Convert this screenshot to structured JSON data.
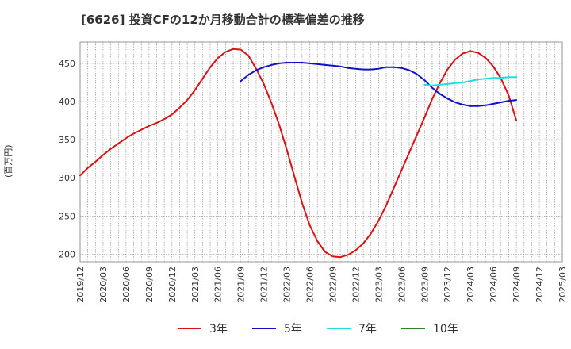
{
  "chart_data": {
    "type": "line",
    "title": "[6626]  投資CFの12か月移動合計の標準偏差の推移",
    "ylabel": "(百万円)",
    "xlabel": "",
    "ylim": [
      190,
      478
    ],
    "xlim": [
      "2019-12",
      "2025-03"
    ],
    "yticks": [
      200,
      250,
      300,
      350,
      400,
      450
    ],
    "xticks": [
      "2019/12",
      "2020/03",
      "2020/06",
      "2020/09",
      "2020/12",
      "2021/03",
      "2021/06",
      "2021/09",
      "2021/12",
      "2022/03",
      "2022/06",
      "2022/09",
      "2022/12",
      "2023/03",
      "2023/06",
      "2023/09",
      "2023/12",
      "2024/03",
      "2024/06",
      "2024/09",
      "2024/12",
      "2025/03"
    ],
    "grid": true,
    "legend_position": "bottom",
    "series": [
      {
        "name": "3年",
        "color": "#dd1111",
        "points": [
          [
            "2019-12",
            303
          ],
          [
            "2020-01",
            313
          ],
          [
            "2020-02",
            321
          ],
          [
            "2020-03",
            330
          ],
          [
            "2020-04",
            338
          ],
          [
            "2020-05",
            345
          ],
          [
            "2020-06",
            352
          ],
          [
            "2020-07",
            358
          ],
          [
            "2020-08",
            363
          ],
          [
            "2020-09",
            368
          ],
          [
            "2020-10",
            372
          ],
          [
            "2020-11",
            377
          ],
          [
            "2020-12",
            383
          ],
          [
            "2021-01",
            392
          ],
          [
            "2021-02",
            402
          ],
          [
            "2021-03",
            415
          ],
          [
            "2021-04",
            430
          ],
          [
            "2021-05",
            445
          ],
          [
            "2021-06",
            457
          ],
          [
            "2021-07",
            465
          ],
          [
            "2021-08",
            469
          ],
          [
            "2021-09",
            468
          ],
          [
            "2021-10",
            460
          ],
          [
            "2021-11",
            443
          ],
          [
            "2021-12",
            423
          ],
          [
            "2022-01",
            398
          ],
          [
            "2022-02",
            370
          ],
          [
            "2022-03",
            337
          ],
          [
            "2022-04",
            302
          ],
          [
            "2022-05",
            267
          ],
          [
            "2022-06",
            238
          ],
          [
            "2022-07",
            217
          ],
          [
            "2022-08",
            203
          ],
          [
            "2022-09",
            197
          ],
          [
            "2022-10",
            196
          ],
          [
            "2022-11",
            199
          ],
          [
            "2022-12",
            205
          ],
          [
            "2023-01",
            214
          ],
          [
            "2023-02",
            227
          ],
          [
            "2023-03",
            244
          ],
          [
            "2023-04",
            264
          ],
          [
            "2023-05",
            287
          ],
          [
            "2023-06",
            310
          ],
          [
            "2023-07",
            333
          ],
          [
            "2023-08",
            356
          ],
          [
            "2023-09",
            379
          ],
          [
            "2023-10",
            403
          ],
          [
            "2023-11",
            424
          ],
          [
            "2023-12",
            442
          ],
          [
            "2024-01",
            455
          ],
          [
            "2024-02",
            463
          ],
          [
            "2024-03",
            466
          ],
          [
            "2024-04",
            464
          ],
          [
            "2024-05",
            457
          ],
          [
            "2024-06",
            446
          ],
          [
            "2024-07",
            430
          ],
          [
            "2024-08",
            408
          ],
          [
            "2024-09",
            375
          ]
        ]
      },
      {
        "name": "5年",
        "color": "#1111cc",
        "points": [
          [
            "2021-09",
            427
          ],
          [
            "2021-10",
            435
          ],
          [
            "2021-11",
            441
          ],
          [
            "2021-12",
            445
          ],
          [
            "2022-01",
            448
          ],
          [
            "2022-02",
            450
          ],
          [
            "2022-03",
            451
          ],
          [
            "2022-04",
            451
          ],
          [
            "2022-05",
            451
          ],
          [
            "2022-06",
            450
          ],
          [
            "2022-07",
            449
          ],
          [
            "2022-08",
            448
          ],
          [
            "2022-09",
            447
          ],
          [
            "2022-10",
            446
          ],
          [
            "2022-11",
            444
          ],
          [
            "2022-12",
            443
          ],
          [
            "2023-01",
            442
          ],
          [
            "2023-02",
            442
          ],
          [
            "2023-03",
            443
          ],
          [
            "2023-04",
            445
          ],
          [
            "2023-05",
            445
          ],
          [
            "2023-06",
            444
          ],
          [
            "2023-07",
            441
          ],
          [
            "2023-08",
            436
          ],
          [
            "2023-09",
            428
          ],
          [
            "2023-10",
            418
          ],
          [
            "2023-11",
            410
          ],
          [
            "2023-12",
            404
          ],
          [
            "2024-01",
            399
          ],
          [
            "2024-02",
            396
          ],
          [
            "2024-03",
            394
          ],
          [
            "2024-04",
            394
          ],
          [
            "2024-05",
            395
          ],
          [
            "2024-06",
            397
          ],
          [
            "2024-07",
            399
          ],
          [
            "2024-08",
            401
          ],
          [
            "2024-09",
            402
          ]
        ]
      },
      {
        "name": "7年",
        "color": "#22dddd",
        "points": [
          [
            "2023-09",
            422
          ],
          [
            "2023-10",
            421
          ],
          [
            "2023-11",
            422
          ],
          [
            "2023-12",
            423
          ],
          [
            "2024-01",
            424
          ],
          [
            "2024-02",
            425
          ],
          [
            "2024-03",
            427
          ],
          [
            "2024-04",
            429
          ],
          [
            "2024-05",
            430
          ],
          [
            "2024-06",
            431
          ],
          [
            "2024-07",
            431
          ],
          [
            "2024-08",
            432
          ],
          [
            "2024-09",
            432
          ]
        ]
      },
      {
        "name": "10年",
        "color": "#228822",
        "points": []
      }
    ]
  }
}
